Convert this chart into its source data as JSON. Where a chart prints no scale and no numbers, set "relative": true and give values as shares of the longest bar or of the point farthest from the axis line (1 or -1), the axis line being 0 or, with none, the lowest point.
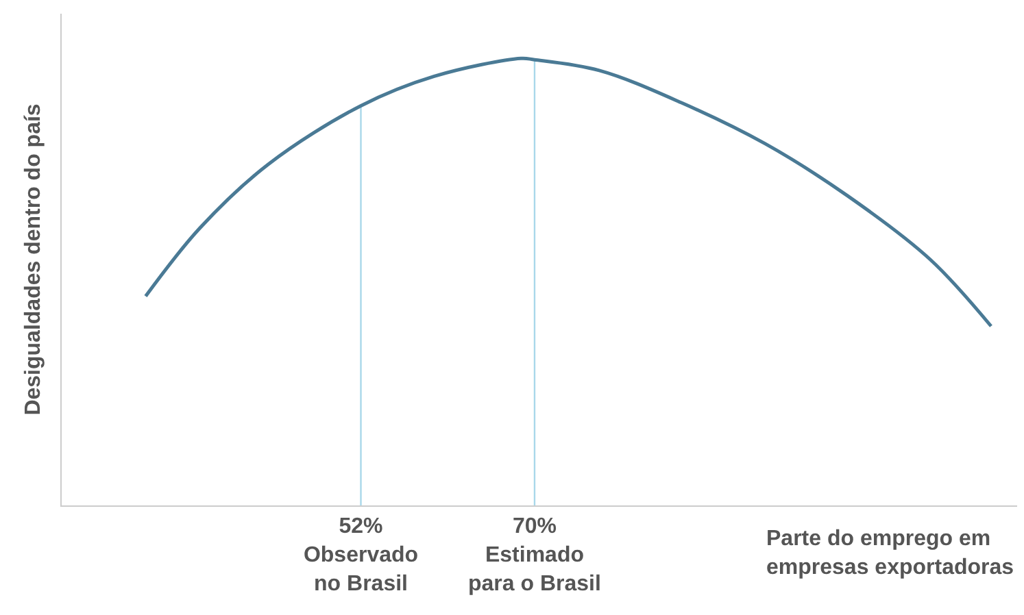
{
  "chart_data": {
    "type": "line",
    "relative": true,
    "xlabel": "Parte do emprego em\nempresas exportadoras",
    "ylabel": "Desigualdades dentro do país",
    "x": [
      29.7,
      35.3,
      42.4,
      52,
      59.6,
      68.6,
      70,
      76.7,
      85.3,
      93.9,
      102.4,
      111,
      117.3
    ],
    "series": [
      {
        "color": "#4a7a95",
        "values": [
          0.468,
          0.62,
          0.763,
          0.894,
          0.96,
          1.0,
          0.997,
          0.973,
          0.9,
          0.809,
          0.693,
          0.55,
          0.401
        ]
      }
    ],
    "xlim": [
      21,
      120
    ],
    "xticks": [
      {
        "value": 52,
        "label": "52%\nObservado\nno Brasil"
      },
      {
        "value": 70,
        "label": "70%\nEstimado\npara o Brasil"
      }
    ],
    "ref_lines": [
      {
        "axis": "x",
        "value": 52,
        "color": "#a9d8ea"
      },
      {
        "axis": "x",
        "value": 70,
        "color": "#a9d8ea"
      }
    ],
    "grid": false,
    "marker": "none",
    "line_style": "solid"
  }
}
